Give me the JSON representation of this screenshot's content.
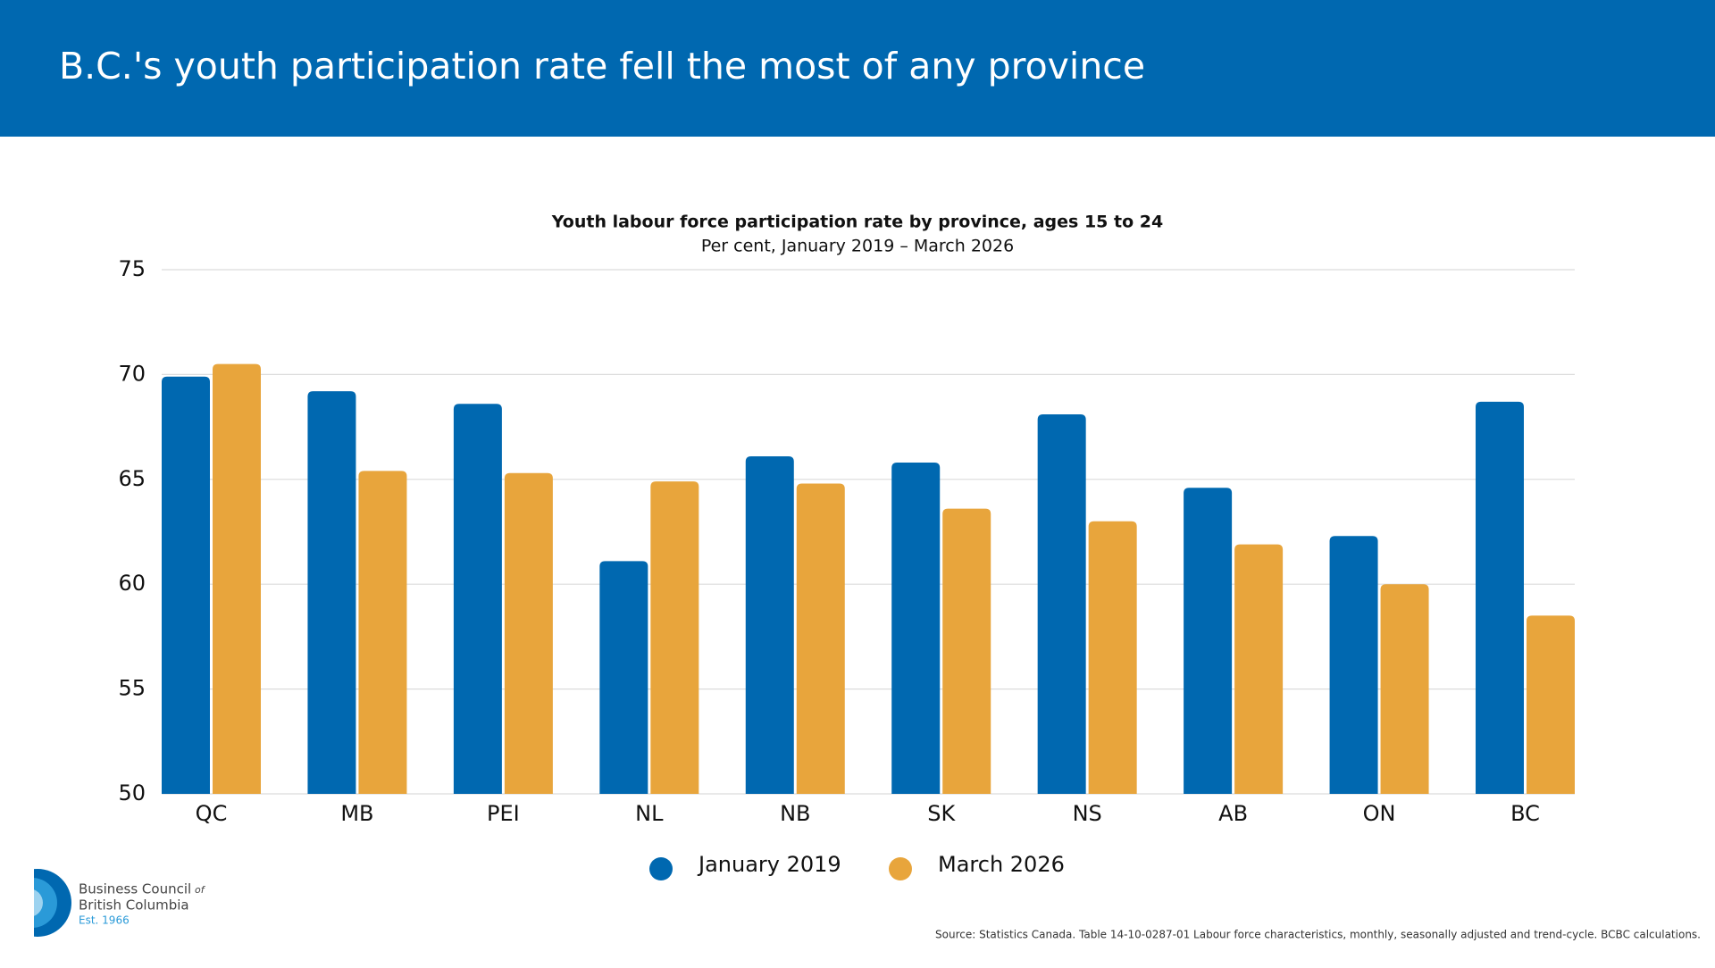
{
  "header": {
    "title": "B.C.'s youth participation rate fell the most of any province"
  },
  "chart_data": {
    "type": "bar",
    "title": "Youth labour force participation rate by province, ages 15 to 24",
    "subtitle": "Per cent, January 2019 – March 2026",
    "categories": [
      "QC",
      "MB",
      "PEI",
      "NL",
      "NB",
      "SK",
      "NS",
      "AB",
      "ON",
      "BC"
    ],
    "series": [
      {
        "name": "January 2019",
        "color": "#0068b0",
        "values": [
          69.9,
          69.2,
          68.6,
          61.1,
          66.1,
          65.8,
          68.1,
          64.6,
          62.3,
          68.7
        ]
      },
      {
        "name": "March 2026",
        "color": "#e8a53c",
        "values": [
          70.5,
          65.4,
          65.3,
          64.9,
          64.8,
          63.6,
          63.0,
          61.9,
          60.0,
          58.5
        ]
      }
    ],
    "ylim": [
      50,
      75
    ],
    "yticks": [
      50,
      55,
      60,
      65,
      70,
      75
    ],
    "grid": true,
    "legend": "bottom"
  },
  "logo": {
    "name": "Business Council",
    "of": "of",
    "line2": "British Columbia",
    "est": "Est. 1966"
  },
  "source": "Source: Statistics Canada. Table 14-10-0287-01 Labour force characteristics, monthly, seasonally adjusted and trend-cycle. BCBC calculations."
}
